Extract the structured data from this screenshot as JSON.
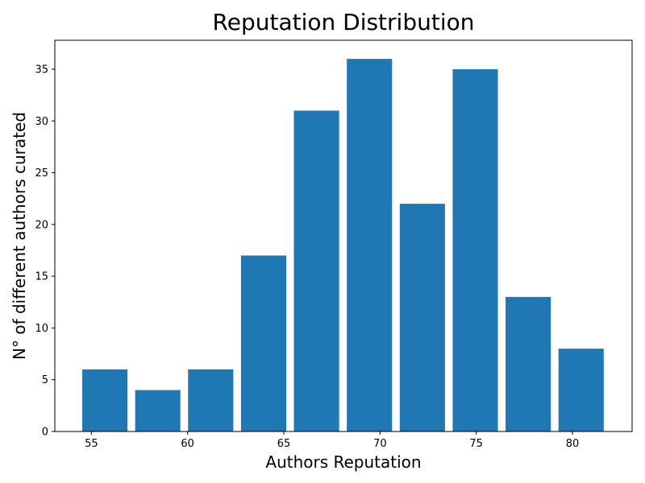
{
  "chart_data": {
    "type": "bar",
    "title": "Reputation Distribution",
    "xlabel": "Authors Reputation",
    "ylabel": "N° of different authors curated",
    "x": [
      55.7,
      58.45,
      61.2,
      63.95,
      66.7,
      69.45,
      72.2,
      74.95,
      77.7,
      80.45
    ],
    "bar_width": 2.35,
    "values": [
      6,
      4,
      6,
      17,
      31,
      36,
      22,
      35,
      13,
      8
    ],
    "xlim": [
      53.1,
      83.1
    ],
    "ylim": [
      0,
      37.8
    ],
    "xticks": [
      55,
      60,
      65,
      70,
      75,
      80
    ],
    "yticks": [
      0,
      5,
      10,
      15,
      20,
      25,
      30,
      35
    ],
    "bar_color": "#1f77b4",
    "grid": false
  }
}
